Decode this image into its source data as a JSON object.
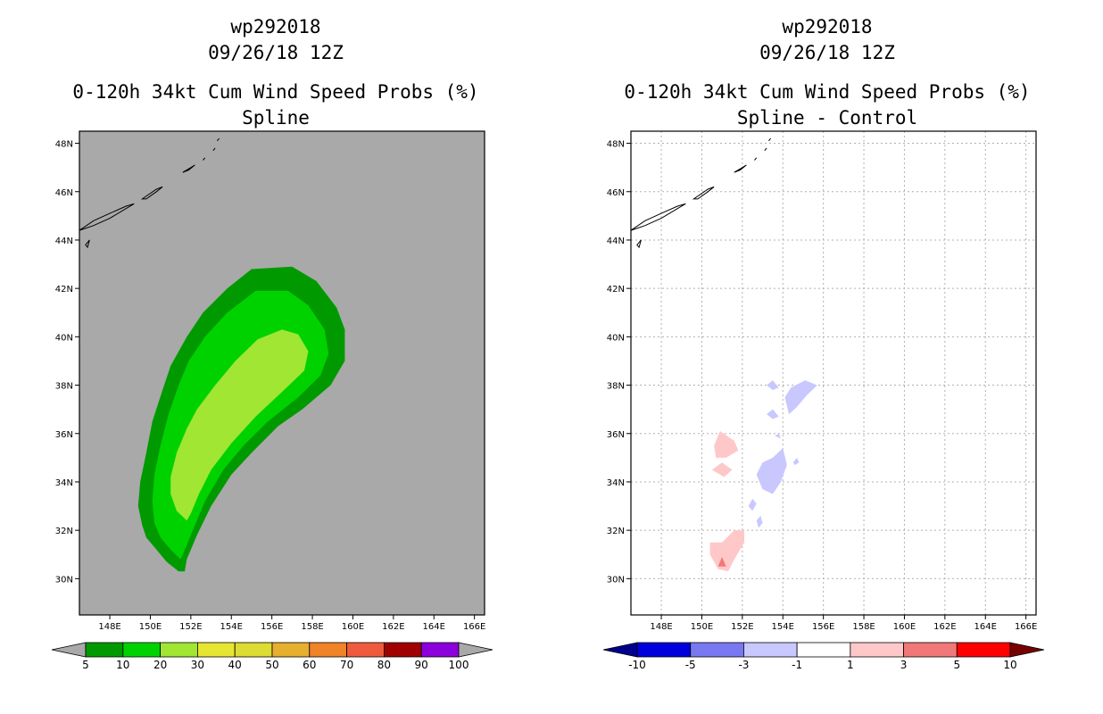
{
  "chart_data": [
    {
      "type": "contour",
      "storm_id": "wp292018",
      "datetime": "09/26/18 12Z",
      "title": "0-120h 34kt Cum Wind Speed Probs (%)",
      "subtitle": "Spline",
      "xlim": [
        146.5,
        166.5
      ],
      "ylim": [
        28.5,
        48.5
      ],
      "x_ticks": [
        "148E",
        "150E",
        "152E",
        "154E",
        "156E",
        "158E",
        "160E",
        "162E",
        "164E",
        "166E"
      ],
      "y_ticks": [
        "30N",
        "32N",
        "34N",
        "36N",
        "38N",
        "40N",
        "42N",
        "44N",
        "46N",
        "48N"
      ],
      "background_color": "#a9a9a9",
      "grid": false,
      "levels": [
        {
          "label": "5-10",
          "color": "#009a00",
          "outline": [
            [
              151.4,
              30.3
            ],
            [
              150.8,
              30.7
            ],
            [
              150.3,
              31.2
            ],
            [
              149.8,
              31.7
            ],
            [
              149.6,
              32.2
            ],
            [
              149.4,
              33.0
            ],
            [
              149.5,
              34.0
            ],
            [
              149.8,
              35.2
            ],
            [
              150.1,
              36.5
            ],
            [
              150.6,
              37.8
            ],
            [
              151.0,
              38.8
            ],
            [
              151.8,
              40.0
            ],
            [
              152.6,
              41.0
            ],
            [
              153.8,
              42.0
            ],
            [
              155.0,
              42.8
            ],
            [
              157.0,
              42.9
            ],
            [
              158.2,
              42.3
            ],
            [
              159.2,
              41.2
            ],
            [
              159.6,
              40.3
            ],
            [
              159.6,
              39.0
            ],
            [
              158.9,
              38.0
            ],
            [
              157.5,
              37.0
            ],
            [
              156.3,
              36.3
            ],
            [
              155.0,
              35.2
            ],
            [
              154.0,
              34.3
            ],
            [
              153.0,
              33.0
            ],
            [
              152.3,
              31.8
            ],
            [
              151.8,
              30.8
            ],
            [
              151.7,
              30.3
            ]
          ]
        },
        {
          "label": "10-20",
          "color": "#00d200",
          "outline": [
            [
              151.5,
              30.8
            ],
            [
              151.0,
              31.2
            ],
            [
              150.5,
              31.7
            ],
            [
              150.2,
              32.3
            ],
            [
              150.1,
              33.2
            ],
            [
              150.2,
              34.3
            ],
            [
              150.5,
              35.5
            ],
            [
              150.9,
              36.8
            ],
            [
              151.4,
              38.0
            ],
            [
              151.9,
              39.0
            ],
            [
              152.7,
              40.0
            ],
            [
              153.8,
              41.0
            ],
            [
              155.2,
              41.9
            ],
            [
              156.8,
              41.9
            ],
            [
              157.8,
              41.3
            ],
            [
              158.6,
              40.3
            ],
            [
              158.8,
              39.3
            ],
            [
              158.4,
              38.4
            ],
            [
              157.3,
              37.5
            ],
            [
              155.8,
              36.5
            ],
            [
              154.6,
              35.5
            ],
            [
              153.6,
              34.5
            ],
            [
              152.7,
              33.2
            ],
            [
              152.1,
              32.0
            ]
          ]
        },
        {
          "label": "20-30",
          "color": "#a0e632",
          "outline": [
            [
              151.8,
              32.4
            ],
            [
              151.3,
              32.8
            ],
            [
              151.0,
              33.5
            ],
            [
              151.0,
              34.2
            ],
            [
              151.3,
              35.2
            ],
            [
              151.8,
              36.2
            ],
            [
              152.3,
              37.0
            ],
            [
              153.2,
              38.0
            ],
            [
              154.2,
              39.0
            ],
            [
              155.3,
              39.9
            ],
            [
              156.5,
              40.3
            ],
            [
              157.3,
              40.1
            ],
            [
              157.8,
              39.4
            ],
            [
              157.6,
              38.6
            ],
            [
              156.6,
              37.8
            ],
            [
              155.2,
              36.7
            ],
            [
              154.0,
              35.6
            ],
            [
              153.0,
              34.5
            ],
            [
              152.4,
              33.5
            ],
            [
              152.0,
              32.7
            ]
          ]
        }
      ],
      "colorbar": {
        "labels": [
          "5",
          "10",
          "20",
          "30",
          "40",
          "50",
          "60",
          "70",
          "80",
          "90",
          "100"
        ],
        "colors": [
          "#009a00",
          "#00d200",
          "#a0e632",
          "#e6e632",
          "#dcdc32",
          "#e6af2d",
          "#f08228",
          "#f05a3c",
          "#a00000",
          "#8c00dc"
        ],
        "end_left": "#a9a9a9",
        "end_right": "#a9a9a9"
      }
    },
    {
      "type": "contour",
      "storm_id": "wp292018",
      "datetime": "09/26/18 12Z",
      "title": "0-120h 34kt Cum Wind Speed Probs (%)",
      "subtitle": "Spline - Control",
      "xlim": [
        146.5,
        166.5
      ],
      "ylim": [
        28.5,
        48.5
      ],
      "x_ticks": [
        "148E",
        "150E",
        "152E",
        "154E",
        "156E",
        "158E",
        "160E",
        "162E",
        "164E",
        "166E"
      ],
      "y_ticks": [
        "30N",
        "32N",
        "34N",
        "36N",
        "38N",
        "40N",
        "42N",
        "44N",
        "46N",
        "48N"
      ],
      "background_color": "#ffffff",
      "grid": true,
      "levels": [
        {
          "label": "-3 to -1",
          "color": "#c8c8ff",
          "outline": [
            [
              154.1,
              37.5
            ],
            [
              154.4,
              37.9
            ],
            [
              155.1,
              38.2
            ],
            [
              155.7,
              38.0
            ],
            [
              155.2,
              37.6
            ],
            [
              154.7,
              37.1
            ],
            [
              154.3,
              36.8
            ]
          ]
        },
        {
          "label": "-3 to -1",
          "color": "#c8c8ff",
          "outline": [
            [
              153.2,
              38.0
            ],
            [
              153.5,
              38.2
            ],
            [
              153.8,
              37.9
            ],
            [
              153.5,
              37.8
            ]
          ]
        },
        {
          "label": "-3 to -1",
          "color": "#c8c8ff",
          "outline": [
            [
              153.2,
              36.8
            ],
            [
              153.5,
              37.0
            ],
            [
              153.8,
              36.7
            ],
            [
              153.5,
              36.6
            ]
          ]
        },
        {
          "label": "-3 to -1",
          "color": "#c8c8ff",
          "outline": [
            [
              152.7,
              34.3
            ],
            [
              153.0,
              33.7
            ],
            [
              153.5,
              33.5
            ],
            [
              153.9,
              34.0
            ],
            [
              154.2,
              34.7
            ],
            [
              154.0,
              35.4
            ],
            [
              153.5,
              35.0
            ],
            [
              153.0,
              34.8
            ]
          ]
        },
        {
          "label": "-3 to -1",
          "color": "#c8c8ff",
          "outline": [
            [
              154.5,
              34.8
            ],
            [
              154.7,
              35.0
            ],
            [
              154.8,
              34.8
            ],
            [
              154.6,
              34.7
            ]
          ]
        },
        {
          "label": "-3 to -1",
          "color": "#c8c8ff",
          "outline": [
            [
              152.3,
              33.0
            ],
            [
              152.5,
              33.3
            ],
            [
              152.7,
              33.1
            ],
            [
              152.5,
              32.8
            ]
          ]
        },
        {
          "label": "-3 to -1",
          "color": "#c8c8ff",
          "outline": [
            [
              152.7,
              32.4
            ],
            [
              152.9,
              32.6
            ],
            [
              153.0,
              32.3
            ],
            [
              152.8,
              32.1
            ]
          ]
        },
        {
          "label": "-3 to -1",
          "color": "#c8c8ff",
          "outline": [
            [
              153.6,
              35.9
            ],
            [
              153.8,
              36.0
            ],
            [
              153.9,
              35.8
            ]
          ]
        },
        {
          "label": "1-3",
          "color": "#ffc8c8",
          "outline": [
            [
              150.6,
              35.5
            ],
            [
              150.9,
              36.1
            ],
            [
              151.6,
              35.7
            ],
            [
              151.8,
              35.3
            ],
            [
              151.2,
              35.0
            ],
            [
              150.7,
              35.0
            ]
          ]
        },
        {
          "label": "1-3",
          "color": "#ffc8c8",
          "outline": [
            [
              150.5,
              34.5
            ],
            [
              151.0,
              34.8
            ],
            [
              151.5,
              34.5
            ],
            [
              151.1,
              34.2
            ]
          ]
        },
        {
          "label": "1-3",
          "color": "#ffc8c8",
          "outline": [
            [
              150.4,
              31.5
            ],
            [
              151.0,
              31.5
            ],
            [
              151.6,
              32.0
            ],
            [
              152.1,
              32.0
            ],
            [
              152.1,
              31.5
            ],
            [
              151.6,
              30.8
            ],
            [
              151.3,
              30.3
            ],
            [
              150.8,
              30.4
            ],
            [
              150.4,
              31.0
            ]
          ]
        },
        {
          "label": "3-5",
          "color": "#f07878",
          "outline": [
            [
              150.8,
              30.5
            ],
            [
              151.2,
              30.5
            ],
            [
              151.0,
              30.9
            ]
          ]
        }
      ],
      "colorbar": {
        "labels": [
          "-10",
          "-5",
          "-3",
          "-1",
          "1",
          "3",
          "5",
          "10"
        ],
        "colors": [
          "#0000dc",
          "#7878f0",
          "#c8c8ff",
          "#ffffff",
          "#ffc8c8",
          "#f07878",
          "#ff0000"
        ],
        "end_left": "#00008c",
        "end_right": "#780000"
      }
    }
  ]
}
